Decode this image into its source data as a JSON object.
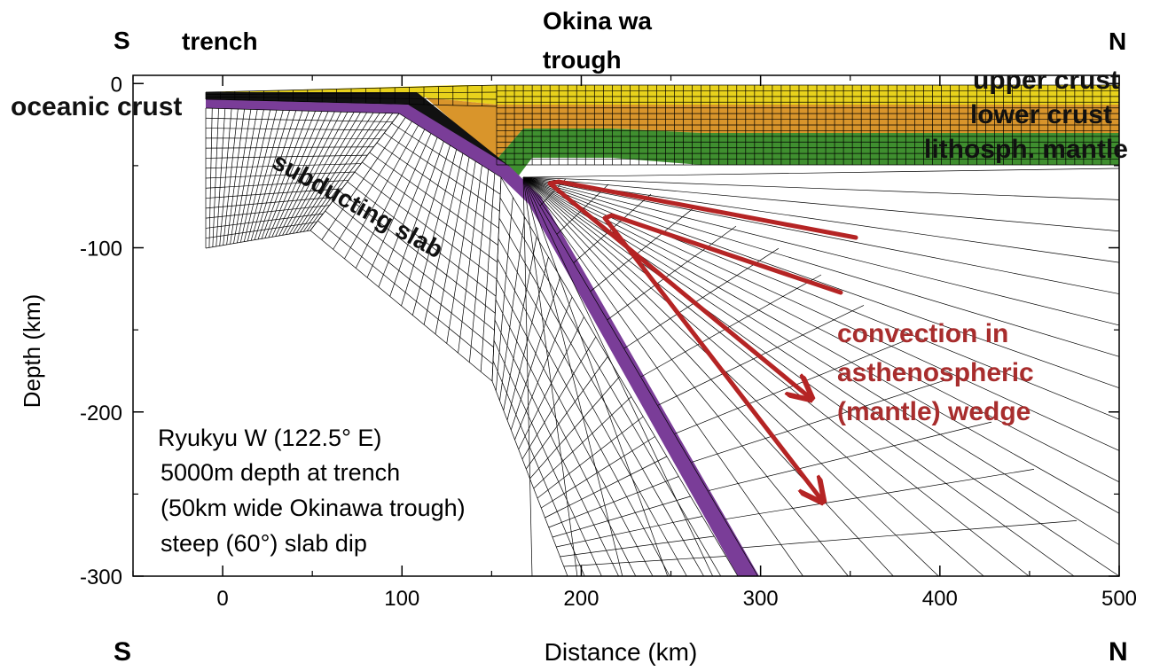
{
  "labels": {
    "south_top": "S",
    "north_top": "N",
    "trench": "trench",
    "okinawa_line1": "Okina wa",
    "okinawa_line2": "trough",
    "oceanic_crust": "oceanic crust",
    "upper_crust": "upper crust",
    "lower_crust": "lower crust",
    "lithosph_mantle": "lithosph. mantle",
    "subducting_slab": "subducting slab",
    "convection_line1": "convection in",
    "convection_line2": "asthenospheric",
    "convection_line3": "(mantle) wedge",
    "south_bottom": "S",
    "north_bottom": "N"
  },
  "info": {
    "line1": "Ryukyu W (122.5° E)",
    "line2": "5000m depth at trench",
    "line3": "(50km wide Okinawa trough)",
    "line4": "steep (60°) slab dip"
  },
  "axes": {
    "x_label": "Distance (km)",
    "y_label": "Depth (km)",
    "x_range": [
      -50,
      500
    ],
    "y_range": [
      -300,
      5
    ],
    "x_ticks": [
      {
        "value": 0,
        "label": "0"
      },
      {
        "value": 100,
        "label": "100"
      },
      {
        "value": 200,
        "label": "200"
      },
      {
        "value": 300,
        "label": "300"
      },
      {
        "value": 400,
        "label": "400"
      },
      {
        "value": 500,
        "label": "500"
      }
    ],
    "y_ticks": [
      {
        "value": 0,
        "label": "0"
      },
      {
        "value": -100,
        "label": "-100"
      },
      {
        "value": -200,
        "label": "-200"
      },
      {
        "value": -300,
        "label": "-300"
      }
    ]
  },
  "colors": {
    "upper_crust": "#e8d21c",
    "lower_crust": "#d9952b",
    "lithosph_mantle": "#3f8f2f",
    "slab": "#7a3d98",
    "oceanic_crust": "#111111",
    "arrow": "#b52424",
    "convection_text": "#a82d2d",
    "mesh": "#000000"
  }
}
